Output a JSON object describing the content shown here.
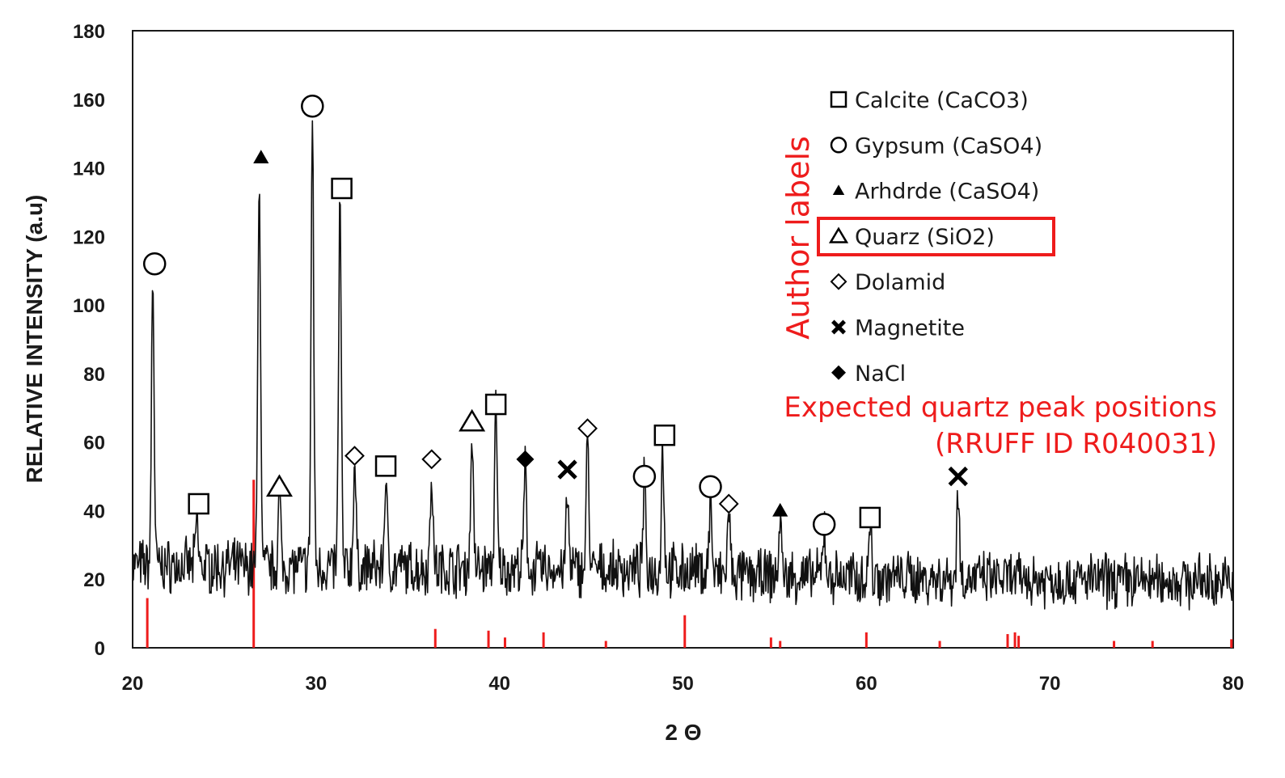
{
  "chart_data": {
    "type": "line",
    "xlabel": "2 Θ",
    "ylabel": "RELATIVE INTENSITY (a.u)",
    "xlim": [
      20,
      80
    ],
    "ylim": [
      0,
      180
    ],
    "xticks": [
      20,
      30,
      40,
      50,
      60,
      70,
      80
    ],
    "yticks": [
      0,
      20,
      40,
      60,
      80,
      100,
      120,
      140,
      160,
      180
    ],
    "grid": false,
    "legend_placement": "top-right",
    "colors": {
      "trace": "#111111",
      "annotation": "#ee1c1c"
    },
    "peaks": [
      {
        "x": 21.1,
        "y": 109
      },
      {
        "x": 23.5,
        "y": 38
      },
      {
        "x": 26.9,
        "y": 140
      },
      {
        "x": 28.0,
        "y": 44
      },
      {
        "x": 29.8,
        "y": 155
      },
      {
        "x": 31.3,
        "y": 131
      },
      {
        "x": 32.1,
        "y": 54
      },
      {
        "x": 33.8,
        "y": 50
      },
      {
        "x": 36.3,
        "y": 52
      },
      {
        "x": 38.5,
        "y": 63
      },
      {
        "x": 39.8,
        "y": 68
      },
      {
        "x": 41.4,
        "y": 52
      },
      {
        "x": 43.7,
        "y": 44
      },
      {
        "x": 44.8,
        "y": 60
      },
      {
        "x": 47.9,
        "y": 48
      },
      {
        "x": 48.9,
        "y": 59
      },
      {
        "x": 51.5,
        "y": 44
      },
      {
        "x": 52.5,
        "y": 40
      },
      {
        "x": 55.3,
        "y": 38
      },
      {
        "x": 57.7,
        "y": 36
      },
      {
        "x": 60.2,
        "y": 36
      },
      {
        "x": 65.0,
        "y": 46
      }
    ],
    "markers": [
      {
        "x": 21.2,
        "y": 112,
        "type": "circle"
      },
      {
        "x": 23.6,
        "y": 42,
        "type": "square"
      },
      {
        "x": 27.0,
        "y": 143,
        "type": "filled-triangle"
      },
      {
        "x": 28.0,
        "y": 47,
        "type": "triangle"
      },
      {
        "x": 29.8,
        "y": 158,
        "type": "circle"
      },
      {
        "x": 31.4,
        "y": 134,
        "type": "square"
      },
      {
        "x": 32.1,
        "y": 56,
        "type": "diamond"
      },
      {
        "x": 33.8,
        "y": 53,
        "type": "square"
      },
      {
        "x": 36.3,
        "y": 55,
        "type": "diamond"
      },
      {
        "x": 38.5,
        "y": 66,
        "type": "triangle"
      },
      {
        "x": 39.8,
        "y": 71,
        "type": "square"
      },
      {
        "x": 41.4,
        "y": 55,
        "type": "filled-diamond"
      },
      {
        "x": 43.7,
        "y": 52,
        "type": "x"
      },
      {
        "x": 44.8,
        "y": 64,
        "type": "diamond"
      },
      {
        "x": 47.9,
        "y": 50,
        "type": "circle"
      },
      {
        "x": 49.0,
        "y": 62,
        "type": "square"
      },
      {
        "x": 51.5,
        "y": 47,
        "type": "circle"
      },
      {
        "x": 52.5,
        "y": 42,
        "type": "diamond"
      },
      {
        "x": 55.3,
        "y": 40,
        "type": "filled-triangle"
      },
      {
        "x": 57.7,
        "y": 36,
        "type": "circle"
      },
      {
        "x": 60.2,
        "y": 38,
        "type": "square"
      },
      {
        "x": 65.0,
        "y": 50,
        "type": "x"
      }
    ],
    "legend": [
      {
        "symbol": "square",
        "label": "Calcite (CaCO3)"
      },
      {
        "symbol": "circle",
        "label": "Gypsum (CaSO4)"
      },
      {
        "symbol": "filled-triangle",
        "label": "Arhdrde (CaSO4)"
      },
      {
        "symbol": "triangle",
        "label": "Quarz (SiO2)",
        "highlighted": true
      },
      {
        "symbol": "diamond",
        "label": "Dolamid"
      },
      {
        "symbol": "x",
        "label": "Magnetite"
      },
      {
        "symbol": "filled-diamond",
        "label": "NaCl"
      }
    ],
    "reference_peaks": {
      "label_line1": "Expected quartz peak positions",
      "label_line2": "(RRUFF ID R040031)",
      "x": [
        20.8,
        26.6,
        36.5,
        39.4,
        40.3,
        42.4,
        45.8,
        50.1,
        54.8,
        55.3,
        60.0,
        64.0,
        67.7,
        68.1,
        68.3,
        73.5,
        75.6,
        79.9
      ],
      "y": [
        14.5,
        49,
        5.5,
        5,
        3,
        4.5,
        2,
        9.5,
        3,
        2,
        4.5,
        2,
        4,
        4.5,
        3.5,
        2,
        2,
        2.5
      ]
    },
    "side_label": "Author labels"
  }
}
